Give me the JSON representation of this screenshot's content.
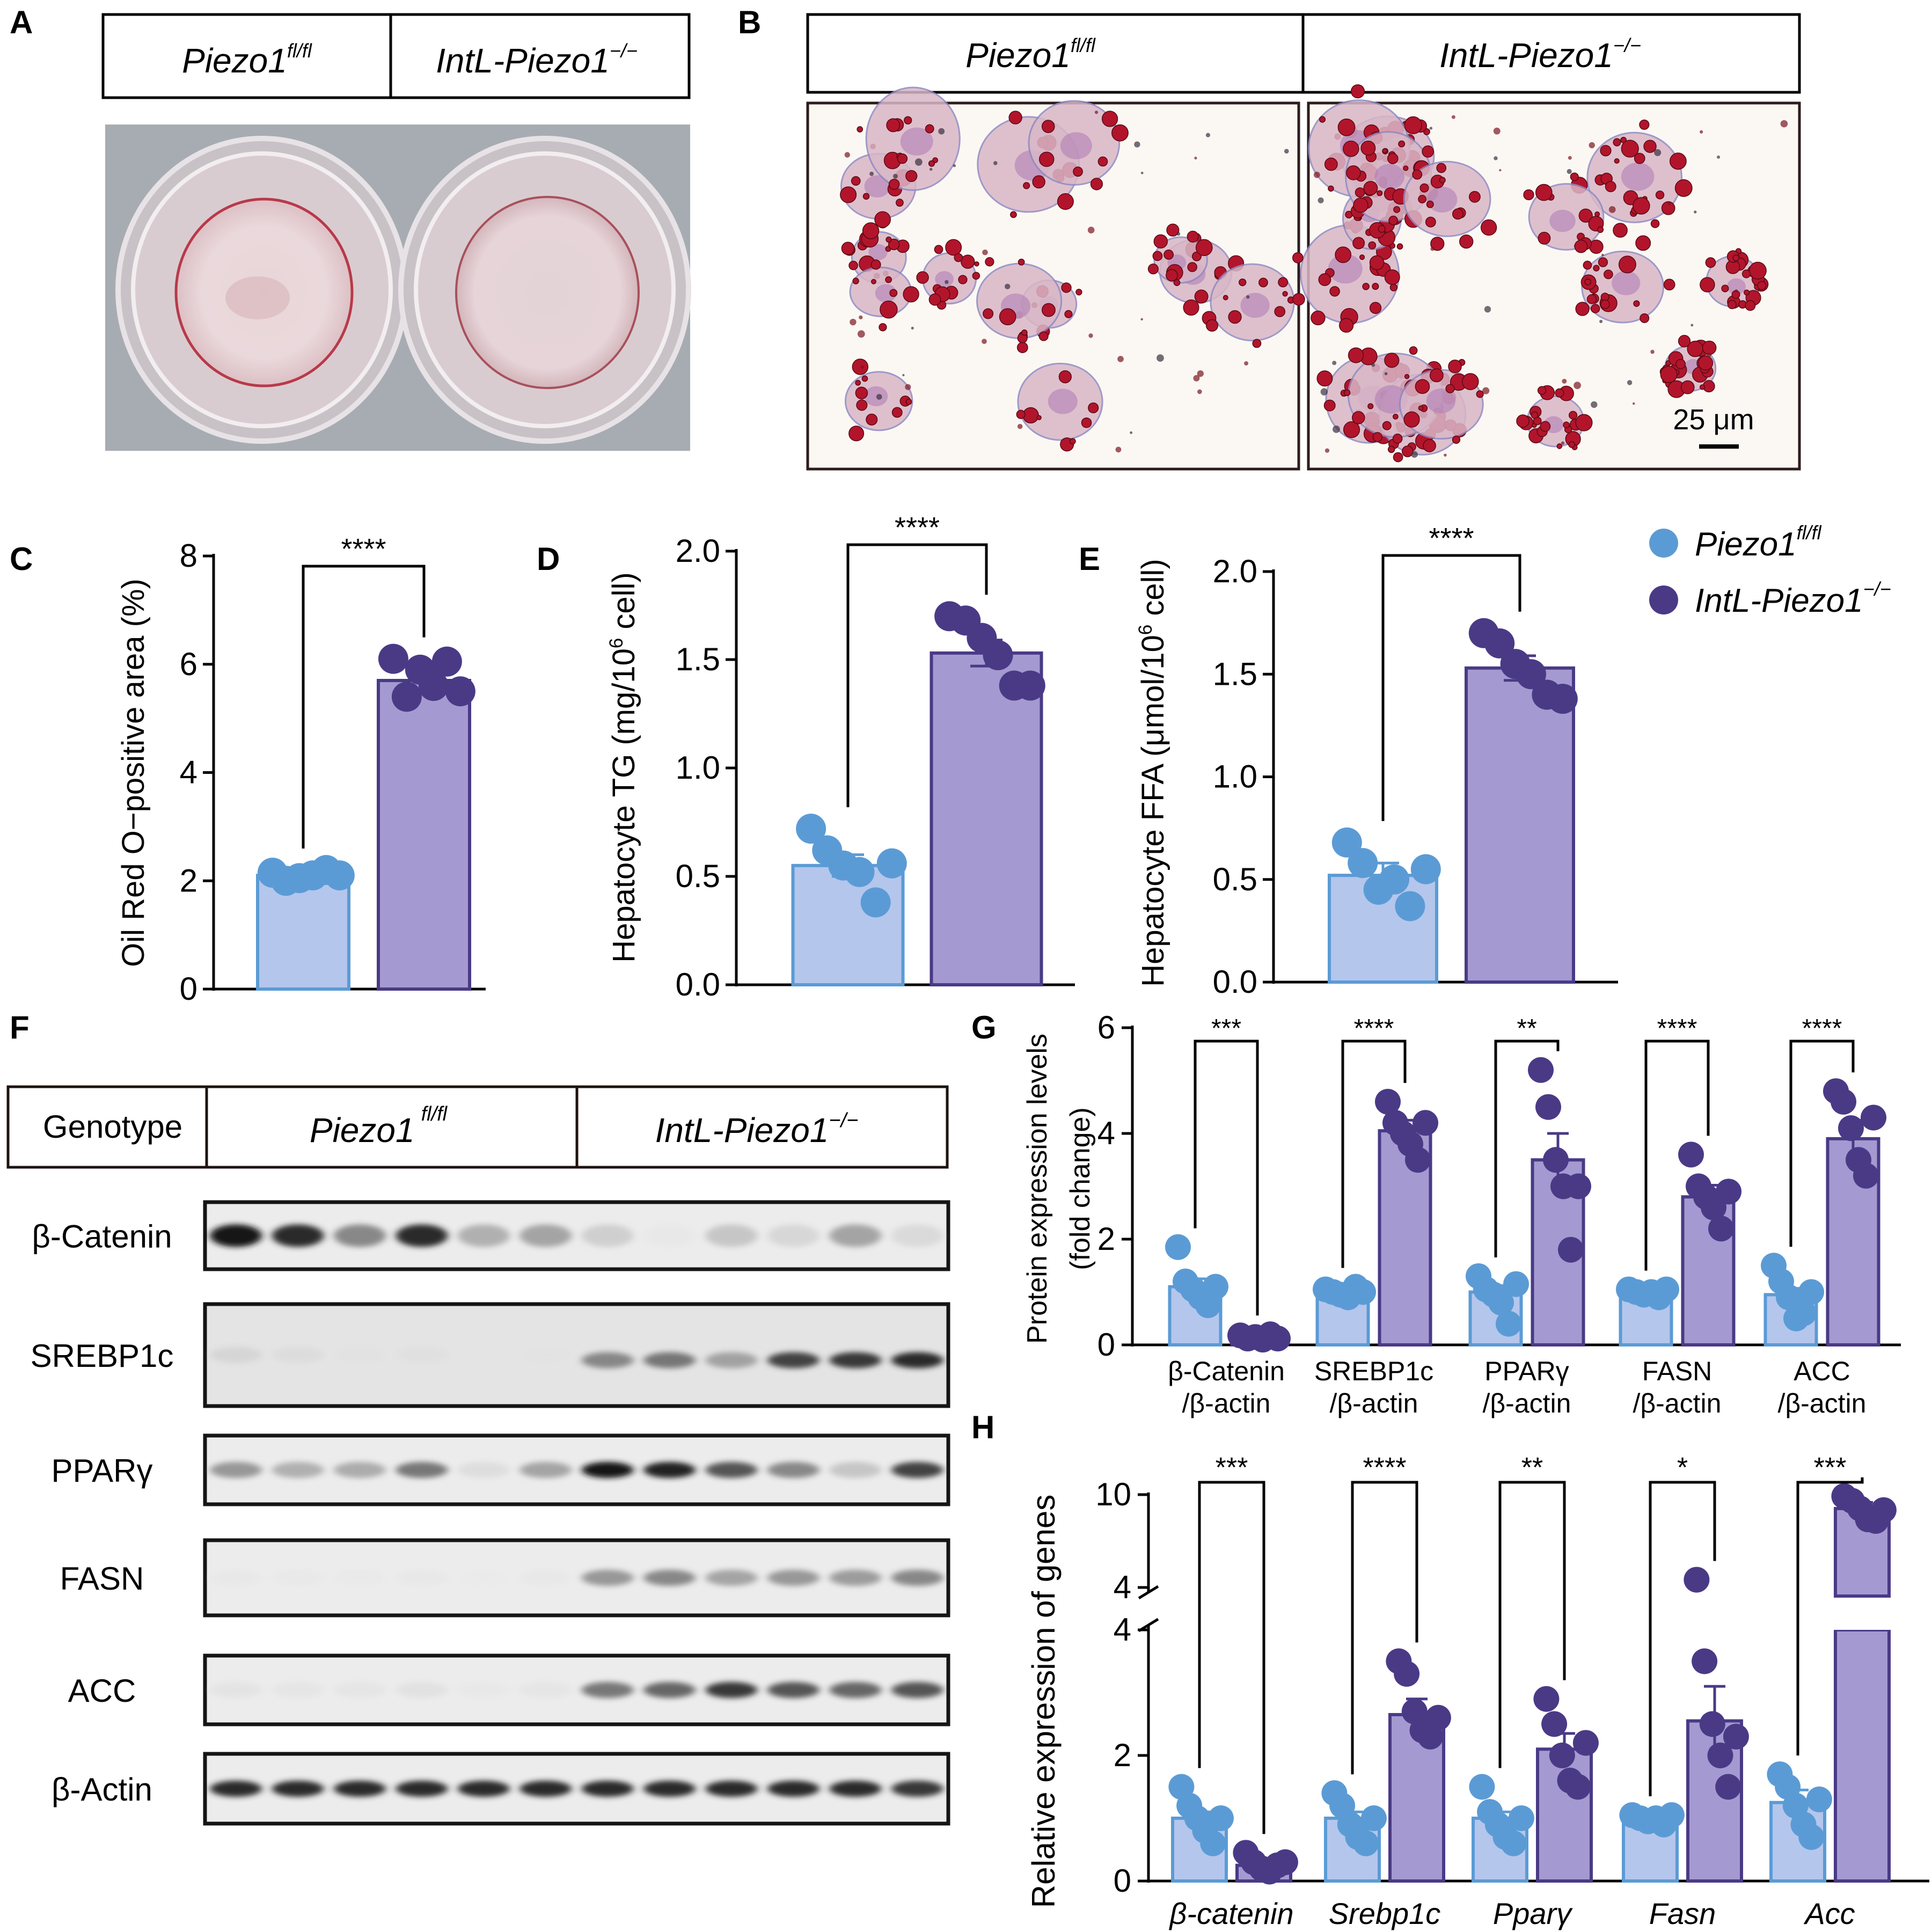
{
  "panels": {
    "A": "A",
    "B": "B",
    "C": "C",
    "D": "D",
    "E": "E",
    "F": "F",
    "G": "G",
    "H": "H"
  },
  "groups": {
    "control_base": "Piezo1",
    "control_sup": "fl/fl",
    "ko_base": "IntL-Piezo1",
    "ko_sup": "−/−"
  },
  "colors": {
    "control_fill": "#b4c6ec",
    "control_line": "#5b9bd5",
    "control_dot": "#5b9bd5",
    "ko_fill": "#a49ad1",
    "ko_line": "#4a3a86",
    "ko_dot": "#4a3a86"
  },
  "panel_b": {
    "scale_bar": "25 μm"
  },
  "chart_data": [
    {
      "id": "C",
      "type": "bar",
      "ylabel": "Oil Red O−positive area (%)",
      "ylim": [
        0,
        8
      ],
      "yticks": [
        0,
        2,
        4,
        6,
        8
      ],
      "categories": [
        "Piezo1 fl/fl",
        "IntL-Piezo1 −/−"
      ],
      "series": [
        {
          "values": [
            2.1,
            5.7
          ],
          "sem": [
            0.05,
            0.15
          ]
        }
      ],
      "points": [
        [
          2.15,
          2.0,
          2.05,
          2.1,
          2.2,
          2.1
        ],
        [
          6.1,
          5.4,
          5.9,
          5.6,
          6.05,
          5.5
        ]
      ],
      "significance": "****"
    },
    {
      "id": "D",
      "type": "bar",
      "ylabel_pre": "Hepatocyte TG (mg/10",
      "ylabel_sup": "6",
      "ylabel_post": " cell)",
      "ylim": [
        0,
        2
      ],
      "yticks": [
        "0.0",
        "0.5",
        "1.0",
        "1.5",
        "2.0"
      ],
      "categories": [
        "Piezo1 fl/fl",
        "IntL-Piezo1 −/−"
      ],
      "series": [
        {
          "values": [
            0.55,
            1.53
          ],
          "sem": [
            0.05,
            0.06
          ]
        }
      ],
      "points": [
        [
          0.72,
          0.62,
          0.55,
          0.52,
          0.38,
          0.56
        ],
        [
          1.7,
          1.68,
          1.6,
          1.52,
          1.38,
          1.38
        ]
      ],
      "significance": "****"
    },
    {
      "id": "E",
      "type": "bar",
      "ylabel_pre": "Hepatocyte FFA (μmol/10",
      "ylabel_sup": "6",
      "ylabel_post": " cell)",
      "ylim": [
        0,
        2
      ],
      "yticks": [
        "0.0",
        "0.5",
        "1.0",
        "1.5",
        "2.0"
      ],
      "categories": [
        "Piezo1 fl/fl",
        "IntL-Piezo1 −/−"
      ],
      "series": [
        {
          "values": [
            0.52,
            1.53
          ],
          "sem": [
            0.06,
            0.06
          ]
        }
      ],
      "points": [
        [
          0.68,
          0.58,
          0.45,
          0.5,
          0.37,
          0.55
        ],
        [
          1.7,
          1.65,
          1.55,
          1.5,
          1.4,
          1.38
        ]
      ],
      "significance": "****"
    },
    {
      "id": "G",
      "type": "bar",
      "ylabel_1": "Protein expression levels",
      "ylabel_2": "(fold change)",
      "ylim": [
        0,
        6
      ],
      "yticks": [
        0,
        2,
        4,
        6
      ],
      "categories": [
        [
          "β-Catenin",
          "/β-actin"
        ],
        [
          "SREBP1c",
          "/β-actin"
        ],
        [
          "PPARγ",
          "/β-actin"
        ],
        [
          "FASN",
          "/β-actin"
        ],
        [
          "ACC",
          "/β-actin"
        ]
      ],
      "series": [
        {
          "values": [
            1.1,
            1.0,
            1.0,
            1.0,
            0.95
          ],
          "sem": [
            0.15,
            0.05,
            0.12,
            0.04,
            0.12
          ]
        },
        {
          "values": [
            0.15,
            4.05,
            3.5,
            2.8,
            3.9
          ],
          "sem": [
            0.02,
            0.2,
            0.5,
            0.22,
            0.35
          ]
        }
      ],
      "points": [
        [
          [
            1.85,
            1.2,
            1.05,
            0.9,
            0.75,
            1.1
          ],
          [
            0.18,
            0.12,
            0.15,
            0.1,
            0.2,
            0.12
          ]
        ],
        [
          [
            1.05,
            1.0,
            0.95,
            0.9,
            1.1,
            1.0
          ],
          [
            4.6,
            4.2,
            4.0,
            3.8,
            3.5,
            4.2
          ]
        ],
        [
          [
            1.3,
            1.05,
            0.95,
            0.8,
            0.4,
            1.15
          ],
          [
            5.2,
            4.5,
            3.5,
            3.0,
            1.8,
            3.0
          ]
        ],
        [
          [
            1.05,
            1.0,
            0.95,
            1.0,
            0.9,
            1.05
          ],
          [
            3.6,
            3.0,
            2.8,
            2.6,
            2.2,
            2.9
          ]
        ],
        [
          [
            1.5,
            1.2,
            0.9,
            0.5,
            0.6,
            1.0
          ],
          [
            4.8,
            4.6,
            4.1,
            3.5,
            3.2,
            4.3
          ]
        ]
      ],
      "significance": [
        "***",
        "****",
        "**",
        "****",
        "****"
      ]
    },
    {
      "id": "H",
      "type": "bar",
      "ylabel": "Relative expression of genes",
      "yticks_lower": [
        0,
        2,
        4
      ],
      "yticks_upper": [
        4,
        10
      ],
      "ylim_lower": [
        0,
        4.5
      ],
      "ylim_upper": [
        4,
        10
      ],
      "categories": [
        "β-catenin",
        "Srebp1c",
        "Pparγ",
        "Fasn",
        "Acc"
      ],
      "series": [
        {
          "values": [
            1.0,
            1.0,
            1.0,
            1.0,
            1.25
          ],
          "sem": [
            0.1,
            0.1,
            0.1,
            0.03,
            0.2
          ]
        },
        {
          "values": [
            0.25,
            2.65,
            2.1,
            2.55,
            9.1
          ],
          "sem": [
            0.05,
            0.25,
            0.25,
            0.55,
            0.4
          ]
        }
      ],
      "points": [
        [
          [
            1.5,
            1.2,
            1.0,
            0.8,
            0.6,
            1.0
          ],
          [
            0.45,
            0.3,
            0.2,
            0.15,
            0.25,
            0.3
          ]
        ],
        [
          [
            1.4,
            1.2,
            0.9,
            0.7,
            0.6,
            1.0
          ],
          [
            3.5,
            3.3,
            2.7,
            2.4,
            2.3,
            2.6
          ]
        ],
        [
          [
            1.5,
            1.1,
            0.9,
            0.7,
            0.6,
            1.0
          ],
          [
            2.9,
            2.5,
            2.0,
            1.6,
            1.5,
            2.2
          ]
        ],
        [
          [
            1.05,
            1.0,
            0.95,
            1.0,
            0.9,
            1.05
          ],
          [
            4.5,
            3.5,
            2.5,
            2.0,
            1.5,
            2.3
          ]
        ],
        [
          [
            1.7,
            1.5,
            1.2,
            0.9,
            0.7,
            1.3
          ],
          [
            9.9,
            9.6,
            9.1,
            8.4,
            8.3,
            9.0
          ]
        ]
      ],
      "significance": [
        "***",
        "****",
        "**",
        "*",
        "***"
      ]
    }
  ],
  "legend": {
    "entries": [
      {
        "base": "Piezo1",
        "sup": "fl/fl"
      },
      {
        "base": "IntL-Piezo1",
        "sup": "−/−"
      }
    ]
  },
  "western": {
    "header": "Genotype",
    "rows": [
      "β-Catenin",
      "SREBP1c",
      "PPARγ",
      "FASN",
      "ACC",
      "β-Actin"
    ],
    "intensities": [
      [
        0.95,
        0.85,
        0.55,
        0.85,
        0.4,
        0.45,
        0.25,
        0.05,
        0.3,
        0.2,
        0.45,
        0.18
      ],
      [
        0.18,
        0.12,
        0.06,
        0.08,
        0.03,
        0.05,
        0.55,
        0.6,
        0.45,
        0.75,
        0.8,
        0.85
      ],
      [
        0.5,
        0.4,
        0.42,
        0.6,
        0.15,
        0.45,
        0.95,
        0.9,
        0.7,
        0.55,
        0.3,
        0.75
      ],
      [
        0.05,
        0.04,
        0.03,
        0.05,
        0.02,
        0.05,
        0.5,
        0.55,
        0.45,
        0.5,
        0.48,
        0.55
      ],
      [
        0.1,
        0.08,
        0.08,
        0.12,
        0.05,
        0.08,
        0.6,
        0.65,
        0.8,
        0.7,
        0.65,
        0.7
      ],
      [
        0.85,
        0.85,
        0.85,
        0.85,
        0.85,
        0.85,
        0.85,
        0.85,
        0.85,
        0.85,
        0.85,
        0.8
      ]
    ]
  }
}
